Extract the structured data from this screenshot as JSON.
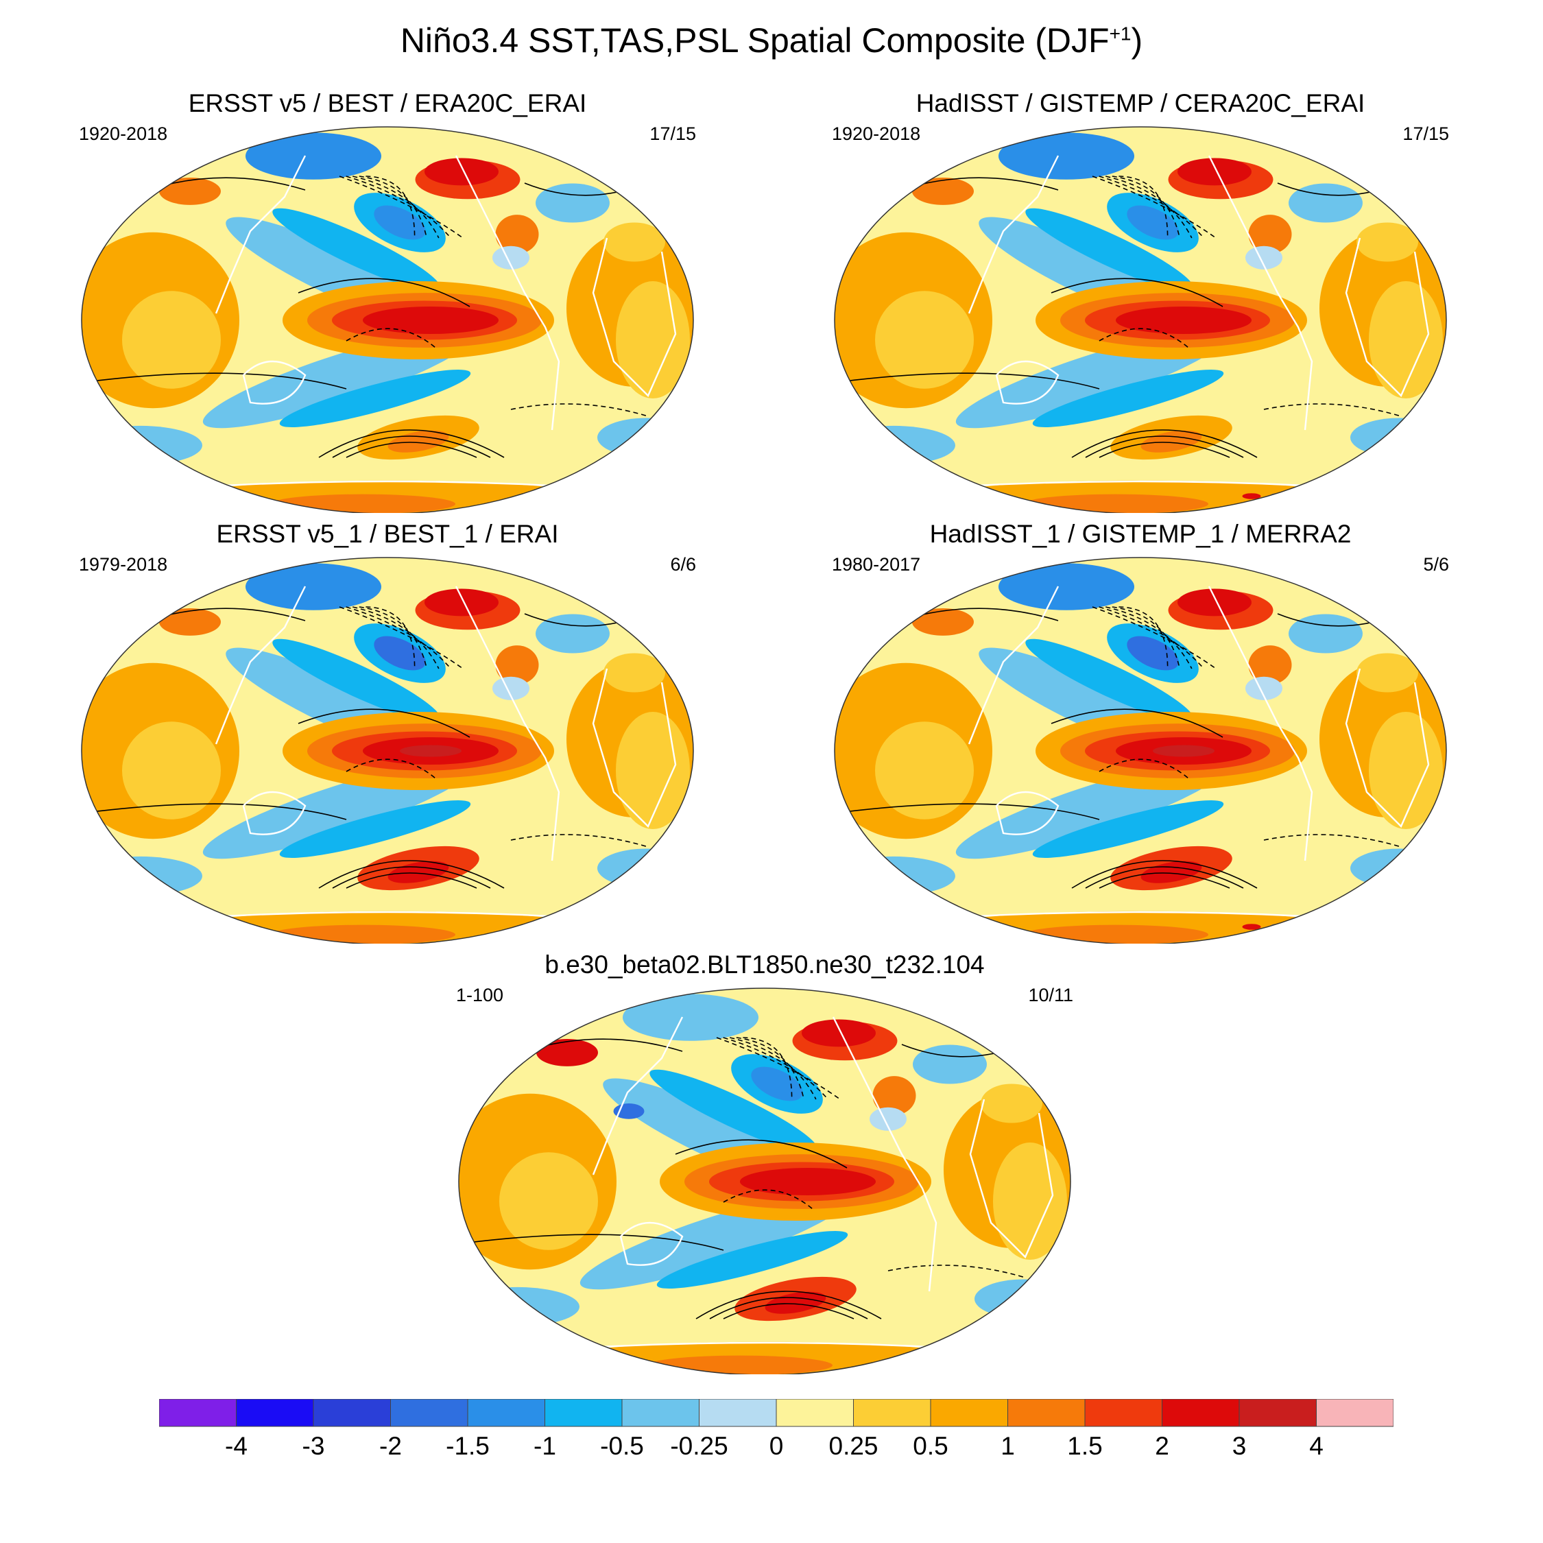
{
  "title": {
    "main": "Niño3.4 SST,TAS,PSL Spatial Composite (DJF",
    "superscript": "+1",
    "close": ")"
  },
  "panels": [
    {
      "id": "p1",
      "title": "ERSST v5 / BEST / ERA20C_ERAI",
      "years": "1920-2018",
      "count": "17/15"
    },
    {
      "id": "p2",
      "title": "HadISST / GISTEMP / CERA20C_ERAI",
      "years": "1920-2018",
      "count": "17/15"
    },
    {
      "id": "p3",
      "title": "ERSST v5_1 / BEST_1 / ERAI",
      "years": "1979-2018",
      "count": "6/6"
    },
    {
      "id": "p4",
      "title": "HadISST_1 / GISTEMP_1 / MERRA2",
      "years": "1980-2017",
      "count": "5/6"
    },
    {
      "id": "p5",
      "title": "b.e30_beta02.BLT1850.ne30_t232.104",
      "years": "1-100",
      "count": "10/11"
    }
  ],
  "colorbar": {
    "colors": [
      "#7f1fe8",
      "#1a0cf5",
      "#2a3fd8",
      "#2f6fe0",
      "#2a8fe8",
      "#11b4f0",
      "#6cc4ec",
      "#b6dcf2",
      "#fdf39a",
      "#fcce35",
      "#faa800",
      "#f67a0a",
      "#ef3a0d",
      "#dd0a0a",
      "#c91e1e",
      "#f8b4b8"
    ],
    "labels": [
      "-4",
      "-3",
      "-2",
      "-1.5",
      "-1",
      "-0.5",
      "-0.25",
      "0",
      "0.25",
      "0.5",
      "1",
      "1.5",
      "2",
      "3",
      "4"
    ]
  }
}
